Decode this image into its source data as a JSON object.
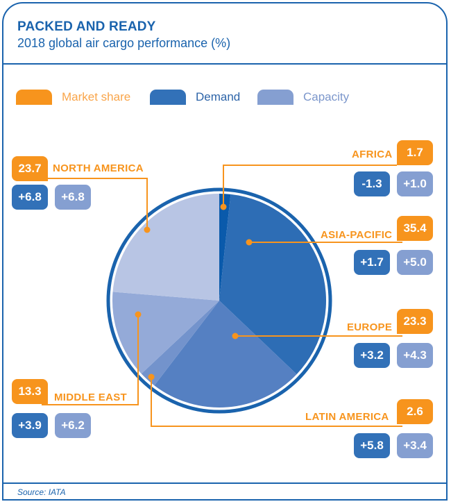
{
  "header": {
    "title": "PACKED AND READY",
    "subtitle": "2018 global air cargo performance (%)"
  },
  "legend": [
    {
      "label": "Market share",
      "color": "#f7941d"
    },
    {
      "label": "Demand",
      "color": "#3271b8"
    },
    {
      "label": "Capacity",
      "color": "#859fd1"
    }
  ],
  "colors": {
    "accent_orange": "#f7941d",
    "brand_blue": "#1a63ad",
    "demand_blue": "#3271b8",
    "capacity_blue": "#859fd1"
  },
  "chart_data": {
    "type": "pie",
    "title": "PACKED AND READY",
    "subtitle": "2018 global air cargo performance (%)",
    "value_label": "Market share (%)",
    "start": "12 o'clock, clockwise",
    "slices": [
      {
        "region": "AFRICA",
        "market_share": 1.7,
        "demand": "-1.3",
        "capacity": "+1.0",
        "color": "#0a5aab"
      },
      {
        "region": "ASIA-PACIFIC",
        "market_share": 35.4,
        "demand": "+1.7",
        "capacity": "+5.0",
        "color": "#2d6db5"
      },
      {
        "region": "EUROPE",
        "market_share": 23.3,
        "demand": "+3.2",
        "capacity": "+4.3",
        "color": "#5580c2"
      },
      {
        "region": "LATIN AMERICA",
        "market_share": 2.6,
        "demand": "+5.8",
        "capacity": "+3.4",
        "color": "#7393cc"
      },
      {
        "region": "MIDDLE EAST",
        "market_share": 13.3,
        "demand": "+3.9",
        "capacity": "+6.2",
        "color": "#94aad8"
      },
      {
        "region": "NORTH AMERICA",
        "market_share": 23.7,
        "demand": "+6.8",
        "capacity": "+6.8",
        "color": "#b8c5e4"
      }
    ],
    "legend": [
      "Market share",
      "Demand",
      "Capacity"
    ],
    "legend_position": "top"
  },
  "footer": {
    "source": "Source: IATA"
  }
}
